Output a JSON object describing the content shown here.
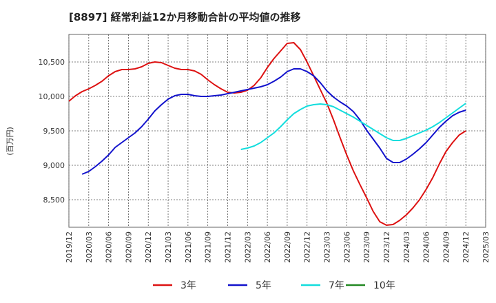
{
  "chart_data": {
    "type": "line",
    "title": "[8897]  経常利益12か月移動合計の平均値の推移",
    "ylabel": "(百万円)",
    "xlabel": "",
    "ylim": [
      8100,
      10900
    ],
    "yticks": [
      8500,
      9000,
      9500,
      10000,
      10500
    ],
    "ytick_labels": [
      "8,500",
      "9,000",
      "9,500",
      "10,000",
      "10,500"
    ],
    "xlim": [
      "2019-12",
      "2025-03"
    ],
    "xticks": [
      "2019/12",
      "2020/03",
      "2020/06",
      "2020/09",
      "2020/12",
      "2021/03",
      "2021/06",
      "2021/09",
      "2021/12",
      "2022/03",
      "2022/06",
      "2022/09",
      "2022/12",
      "2023/03",
      "2023/06",
      "2023/09",
      "2023/12",
      "2024/03",
      "2024/06",
      "2024/09",
      "2024/12",
      "2025/03"
    ],
    "grid": true,
    "legend_position": "bottom",
    "series": [
      {
        "name": "3年",
        "color": "#dd1111",
        "points": [
          [
            "2019-12",
            9930
          ],
          [
            "2020-01",
            10010
          ],
          [
            "2020-02",
            10070
          ],
          [
            "2020-03",
            10110
          ],
          [
            "2020-04",
            10160
          ],
          [
            "2020-05",
            10220
          ],
          [
            "2020-06",
            10300
          ],
          [
            "2020-07",
            10360
          ],
          [
            "2020-08",
            10390
          ],
          [
            "2020-09",
            10390
          ],
          [
            "2020-10",
            10400
          ],
          [
            "2020-11",
            10430
          ],
          [
            "2020-12",
            10480
          ],
          [
            "2021-01",
            10500
          ],
          [
            "2021-02",
            10490
          ],
          [
            "2021-03",
            10450
          ],
          [
            "2021-04",
            10410
          ],
          [
            "2021-05",
            10390
          ],
          [
            "2021-06",
            10390
          ],
          [
            "2021-07",
            10370
          ],
          [
            "2021-08",
            10320
          ],
          [
            "2021-09",
            10240
          ],
          [
            "2021-10",
            10170
          ],
          [
            "2021-11",
            10110
          ],
          [
            "2021-12",
            10060
          ],
          [
            "2022-01",
            10050
          ],
          [
            "2022-02",
            10060
          ],
          [
            "2022-03",
            10090
          ],
          [
            "2022-04",
            10160
          ],
          [
            "2022-05",
            10270
          ],
          [
            "2022-06",
            10420
          ],
          [
            "2022-07",
            10550
          ],
          [
            "2022-08",
            10660
          ],
          [
            "2022-09",
            10770
          ],
          [
            "2022-10",
            10780
          ],
          [
            "2022-11",
            10680
          ],
          [
            "2022-12",
            10500
          ],
          [
            "2023-01",
            10300
          ],
          [
            "2023-02",
            10100
          ],
          [
            "2023-03",
            9900
          ],
          [
            "2023-04",
            9660
          ],
          [
            "2023-05",
            9400
          ],
          [
            "2023-06",
            9150
          ],
          [
            "2023-07",
            8920
          ],
          [
            "2023-08",
            8720
          ],
          [
            "2023-09",
            8530
          ],
          [
            "2023-10",
            8330
          ],
          [
            "2023-11",
            8180
          ],
          [
            "2023-12",
            8130
          ],
          [
            "2024-01",
            8140
          ],
          [
            "2024-02",
            8200
          ],
          [
            "2024-03",
            8280
          ],
          [
            "2024-04",
            8380
          ],
          [
            "2024-05",
            8500
          ],
          [
            "2024-06",
            8650
          ],
          [
            "2024-07",
            8820
          ],
          [
            "2024-08",
            9020
          ],
          [
            "2024-09",
            9200
          ],
          [
            "2024-10",
            9330
          ],
          [
            "2024-11",
            9440
          ],
          [
            "2024-12",
            9500
          ]
        ]
      },
      {
        "name": "5年",
        "color": "#1111cc",
        "points": [
          [
            "2020-02",
            8870
          ],
          [
            "2020-03",
            8910
          ],
          [
            "2020-04",
            8980
          ],
          [
            "2020-05",
            9060
          ],
          [
            "2020-06",
            9150
          ],
          [
            "2020-07",
            9260
          ],
          [
            "2020-08",
            9330
          ],
          [
            "2020-09",
            9400
          ],
          [
            "2020-10",
            9470
          ],
          [
            "2020-11",
            9560
          ],
          [
            "2020-12",
            9670
          ],
          [
            "2021-01",
            9790
          ],
          [
            "2021-02",
            9880
          ],
          [
            "2021-03",
            9960
          ],
          [
            "2021-04",
            10010
          ],
          [
            "2021-05",
            10030
          ],
          [
            "2021-06",
            10030
          ],
          [
            "2021-07",
            10010
          ],
          [
            "2021-08",
            10000
          ],
          [
            "2021-09",
            10000
          ],
          [
            "2021-10",
            10010
          ],
          [
            "2021-11",
            10020
          ],
          [
            "2021-12",
            10040
          ],
          [
            "2022-01",
            10060
          ],
          [
            "2022-02",
            10080
          ],
          [
            "2022-03",
            10100
          ],
          [
            "2022-04",
            10120
          ],
          [
            "2022-05",
            10140
          ],
          [
            "2022-06",
            10170
          ],
          [
            "2022-07",
            10220
          ],
          [
            "2022-08",
            10280
          ],
          [
            "2022-09",
            10360
          ],
          [
            "2022-10",
            10400
          ],
          [
            "2022-11",
            10400
          ],
          [
            "2022-12",
            10360
          ],
          [
            "2023-01",
            10300
          ],
          [
            "2023-02",
            10200
          ],
          [
            "2023-03",
            10080
          ],
          [
            "2023-04",
            9990
          ],
          [
            "2023-05",
            9920
          ],
          [
            "2023-06",
            9860
          ],
          [
            "2023-07",
            9780
          ],
          [
            "2023-08",
            9660
          ],
          [
            "2023-09",
            9510
          ],
          [
            "2023-10",
            9380
          ],
          [
            "2023-11",
            9250
          ],
          [
            "2023-12",
            9100
          ],
          [
            "2024-01",
            9040
          ],
          [
            "2024-02",
            9040
          ],
          [
            "2024-03",
            9090
          ],
          [
            "2024-04",
            9160
          ],
          [
            "2024-05",
            9240
          ],
          [
            "2024-06",
            9330
          ],
          [
            "2024-07",
            9440
          ],
          [
            "2024-08",
            9550
          ],
          [
            "2024-09",
            9640
          ],
          [
            "2024-10",
            9720
          ],
          [
            "2024-11",
            9770
          ],
          [
            "2024-12",
            9800
          ]
        ]
      },
      {
        "name": "7年",
        "color": "#11dddd",
        "points": [
          [
            "2022-02",
            9230
          ],
          [
            "2022-03",
            9250
          ],
          [
            "2022-04",
            9280
          ],
          [
            "2022-05",
            9330
          ],
          [
            "2022-06",
            9400
          ],
          [
            "2022-07",
            9470
          ],
          [
            "2022-08",
            9560
          ],
          [
            "2022-09",
            9660
          ],
          [
            "2022-10",
            9750
          ],
          [
            "2022-11",
            9810
          ],
          [
            "2022-12",
            9860
          ],
          [
            "2023-01",
            9880
          ],
          [
            "2023-02",
            9890
          ],
          [
            "2023-03",
            9880
          ],
          [
            "2023-04",
            9850
          ],
          [
            "2023-05",
            9800
          ],
          [
            "2023-06",
            9750
          ],
          [
            "2023-07",
            9700
          ],
          [
            "2023-08",
            9640
          ],
          [
            "2023-09",
            9580
          ],
          [
            "2023-10",
            9520
          ],
          [
            "2023-11",
            9460
          ],
          [
            "2023-12",
            9400
          ],
          [
            "2024-01",
            9360
          ],
          [
            "2024-02",
            9360
          ],
          [
            "2024-03",
            9390
          ],
          [
            "2024-04",
            9430
          ],
          [
            "2024-05",
            9470
          ],
          [
            "2024-06",
            9510
          ],
          [
            "2024-07",
            9560
          ],
          [
            "2024-08",
            9620
          ],
          [
            "2024-09",
            9690
          ],
          [
            "2024-10",
            9760
          ],
          [
            "2024-11",
            9830
          ],
          [
            "2024-12",
            9900
          ]
        ]
      },
      {
        "name": "10年",
        "color": "#228822",
        "points": []
      }
    ]
  }
}
